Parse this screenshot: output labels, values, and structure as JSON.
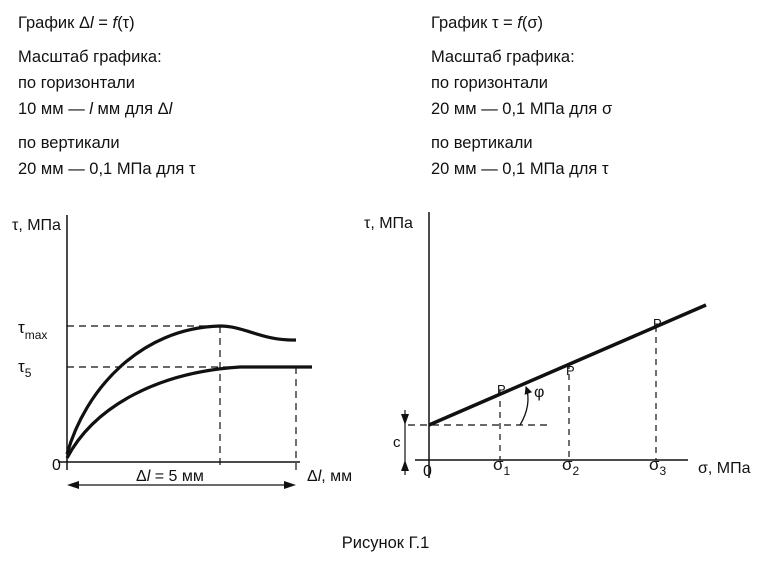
{
  "left_header": {
    "title_prefix": "График Δ",
    "title_l": "l",
    "title_mid": " = ",
    "title_f": "f",
    "title_arg": "(τ)",
    "scale_label": "Масштаб графика:",
    "horiz_label": "по горизонтали",
    "horiz_prefix": "10 мм — ",
    "horiz_l": "l",
    "horiz_mid": " мм для Δ",
    "horiz_l2": "l",
    "vert_label": "по вертикали",
    "vert_value": "20 мм — 0,1 МПа для τ"
  },
  "right_header": {
    "title_prefix": "График τ = ",
    "title_f": "f",
    "title_arg": "(σ)",
    "scale_label": "Масштаб графика:",
    "horiz_label": "по горизонтали",
    "horiz_value": "20 мм — 0,1 МПа для σ",
    "vert_label": "по вертикали",
    "vert_value": "20 мм — 0,1 МПа для τ"
  },
  "left_graph": {
    "y_axis_label": "τ, МПа",
    "tau_max": "τ",
    "tau_max_sub": "max",
    "tau_5": "τ",
    "tau_5_sub": "5",
    "origin": "0",
    "dim_prefix": "Δ",
    "dim_l": "l",
    "dim_value": " = 5 мм",
    "x_axis_prefix": "Δ",
    "x_axis_l": "l",
    "x_axis_unit": ", мм"
  },
  "right_graph": {
    "y_axis_label": "τ, МПа",
    "origin": "0",
    "c_label": "с",
    "phi_label": "φ",
    "p_labels": [
      "P",
      "P",
      "P"
    ],
    "sigma_labels": [
      {
        "base": "σ",
        "sub": "1"
      },
      {
        "base": "σ",
        "sub": "2"
      },
      {
        "base": "σ",
        "sub": "3"
      }
    ],
    "x_axis_label": "σ, МПа"
  },
  "caption": "Рисунок Г.1"
}
